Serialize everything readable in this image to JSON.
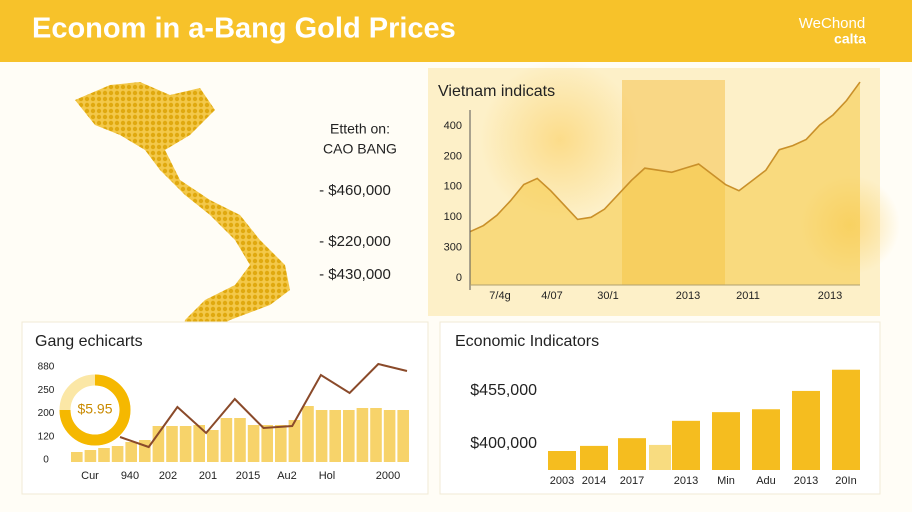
{
  "header": {
    "title": "Econom in a-Bang Gold Prices",
    "brand_top": "WeChond",
    "brand_bottom": "calta"
  },
  "map_panel": {
    "caption": [
      "Etteth on:",
      "CAO BANG"
    ],
    "prices": [
      "- $460,000",
      "- $220,000",
      "- $430,000"
    ]
  },
  "chart_data": [
    {
      "type": "area",
      "title": "Vietnam indicats",
      "color": "#f5c842",
      "x_labels": [
        "7/4g",
        "4/07",
        "30/1",
        "2013",
        "2011",
        "2013"
      ],
      "y_labels": [
        "400",
        "200",
        "100",
        "100",
        "300",
        "0"
      ],
      "ylim": [
        0,
        100
      ],
      "values": [
        26,
        29,
        34,
        41,
        49,
        52,
        46,
        39,
        32,
        33,
        37,
        44,
        51,
        57,
        56,
        55,
        57,
        59,
        54,
        49,
        46,
        51,
        56,
        66,
        68,
        71,
        78,
        83,
        90,
        99
      ]
    },
    {
      "type": "combo",
      "title": "Gang echicarts",
      "color": "#f7d36a",
      "line_color": "#8a4a2a",
      "x_labels": [
        "Cur",
        "940",
        "202",
        "201",
        "2015",
        "Au2",
        "Hol",
        "2000"
      ],
      "y_labels": [
        "880",
        "250",
        "200",
        "120",
        "0"
      ],
      "ylim": [
        0,
        100
      ],
      "values": [
        10,
        12,
        14,
        16,
        20,
        22,
        36,
        36,
        36,
        37,
        32,
        44,
        44,
        37,
        37,
        37,
        42,
        56,
        52,
        52,
        52,
        54,
        54,
        52,
        52
      ],
      "line_values": [
        25,
        15,
        55,
        29,
        63,
        34,
        36,
        87,
        69,
        98,
        91
      ],
      "donut_label": "$5.95",
      "donut_value": 75,
      "donut_color": "#f5b800"
    },
    {
      "type": "bar",
      "title": "Economic Indicators",
      "categories": [
        "2003",
        "2014",
        "2017",
        null,
        "2013",
        "Min",
        "Adu",
        "2013",
        "20In"
      ],
      "values": [
        392700,
        398000,
        406000,
        399000,
        424000,
        433000,
        436000,
        455000,
        477000
      ],
      "colors": [
        "#f5bd1f",
        "#f5bd1f",
        "#f5bd1f",
        "#f8dc80",
        "#f5bd1f",
        "#f5bd1f",
        "#f5bd1f",
        "#f5bd1f",
        "#f5bd1f"
      ],
      "ylim": [
        373000,
        485000
      ],
      "yticks": [
        {
          "value": 455000,
          "label": "$455,000"
        },
        {
          "value": 400000,
          "label": "$400,000"
        }
      ]
    }
  ]
}
